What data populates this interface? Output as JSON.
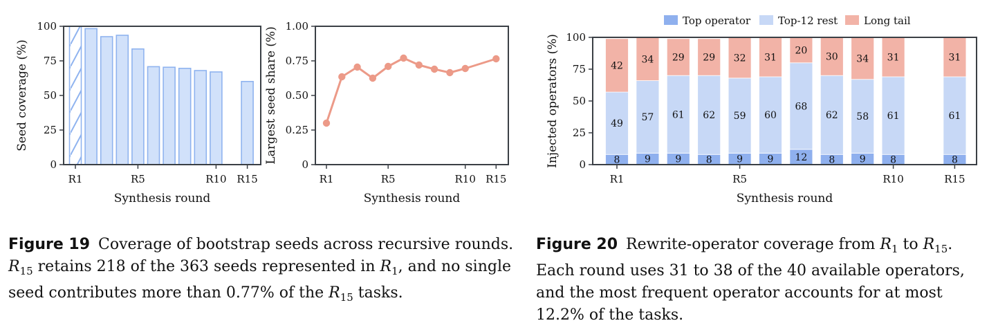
{
  "colors": {
    "bar_fill": "#d1e1fa",
    "bar_edge": "#8fb3ef",
    "line": "#ec9a88",
    "top": "#8fb0ee",
    "rest": "#c7d8f6",
    "tail": "#f2b3a7",
    "axis": "#3a3f45"
  },
  "chart_data": [
    {
      "type": "bar",
      "xlabel": "Synthesis round",
      "ylabel": "Seed coverage (%)",
      "ylim": [
        0,
        100
      ],
      "yticks": [
        "0",
        "25",
        "50",
        "75",
        "100"
      ],
      "xticks": [
        "R1",
        "R5",
        "R10",
        "R15"
      ],
      "x": [
        1,
        2,
        3,
        4,
        5,
        6,
        7,
        8,
        9,
        10,
        15
      ],
      "values": [
        100,
        98.3,
        92.5,
        93.5,
        83.6,
        70.8,
        70.4,
        69.6,
        68.0,
        67.0,
        60.1
      ],
      "hatched_bar": "R1"
    },
    {
      "type": "line",
      "xlabel": "Synthesis round",
      "ylabel": "Largest seed share (%)",
      "ylim": [
        0,
        1.0
      ],
      "yticks": [
        "0",
        "0.25",
        "0.50",
        "0.75",
        "1.00"
      ],
      "xticks": [
        "R1",
        "R5",
        "R10",
        "R15"
      ],
      "x": [
        1,
        2,
        3,
        4,
        5,
        6,
        7,
        8,
        9,
        10,
        15
      ],
      "values": [
        0.3,
        0.635,
        0.705,
        0.625,
        0.71,
        0.77,
        0.72,
        0.69,
        0.665,
        0.695,
        0.765
      ]
    },
    {
      "type": "bar",
      "stacked": true,
      "xlabel": "Synthesis round",
      "ylabel": "Injected operators (%)",
      "ylim": [
        0,
        100
      ],
      "yticks": [
        "0",
        "25",
        "50",
        "75",
        "100"
      ],
      "xticks": [
        "R1",
        "R5",
        "R10",
        "R15"
      ],
      "x": [
        1,
        2,
        3,
        4,
        5,
        6,
        7,
        8,
        9,
        10,
        15
      ],
      "legend": [
        "Top operator",
        "Top-12 rest",
        "Long tail"
      ],
      "legend_position": "top",
      "series": [
        {
          "name": "Top operator",
          "values": [
            8,
            9,
            9,
            8,
            9,
            9,
            12,
            8,
            9,
            8,
            8
          ],
          "labels": [
            "8",
            "9",
            "9",
            "8",
            "9",
            "9",
            "12",
            "8",
            "9",
            "8",
            "8"
          ]
        },
        {
          "name": "Top-12 rest",
          "values": [
            49,
            57,
            61,
            62,
            59,
            60,
            68,
            62,
            58,
            61,
            61
          ],
          "labels": [
            "49",
            "57",
            "61",
            "62",
            "59",
            "60",
            "68",
            "62",
            "58",
            "61",
            "61"
          ]
        },
        {
          "name": "Long tail",
          "values": [
            42,
            34,
            29,
            29,
            32,
            31,
            20,
            30,
            34,
            31,
            31
          ],
          "labels": [
            "42",
            "34",
            "29",
            "29",
            "32",
            "31",
            "20",
            "30",
            "34",
            "31",
            "31"
          ]
        }
      ]
    }
  ],
  "captions": {
    "fig19": {
      "label": "Figure 19",
      "t1": "Coverage of bootstrap seeds across recursive rounds.",
      "r": "R",
      "sub15": "15",
      "t2": " retains 218 of the 363 seeds represented in ",
      "sub1": "1",
      "t3": ", and no single seed contributes more than 0.77% of the ",
      "t4": " tasks."
    },
    "fig20": {
      "label": "Figure 20",
      "t1": "Rewrite-operator coverage from ",
      "r": "R",
      "sub1": "1",
      "t2": " to ",
      "sub15": "15",
      "t3": ". Each round uses 31 to 38 of the 40 available operators, and the most frequent operator accounts for at most 12.2% of the tasks."
    }
  }
}
